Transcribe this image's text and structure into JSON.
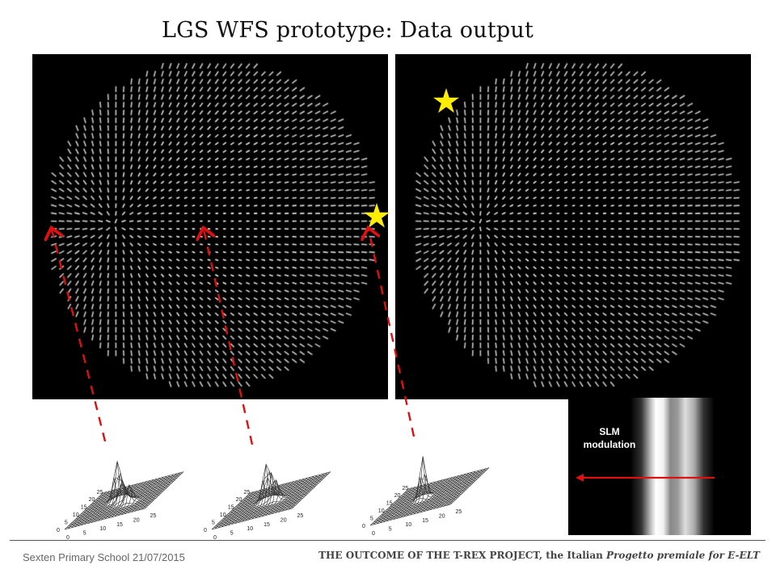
{
  "slide": {
    "title": "LGS WFS prototype: Data output",
    "slm_label_line1": "SLM",
    "slm_label_line2": "modulation",
    "footer_left": "Sexten Primary School  21/07/2015",
    "footer_right_main": "THE OUTCOME OF THE T-REX PROJECT, the Italian ",
    "footer_right_italic": "Progetto premiale for E-ELT"
  },
  "colors": {
    "star": "#ffee00",
    "arrow": "#dd1111",
    "spot": "#ffffff",
    "background": "#000000"
  },
  "plot_ticks": {
    "x": [
      "0",
      "5",
      "10",
      "15",
      "20",
      "25"
    ],
    "y": [
      "0",
      "5",
      "10",
      "15",
      "20",
      "25"
    ]
  }
}
